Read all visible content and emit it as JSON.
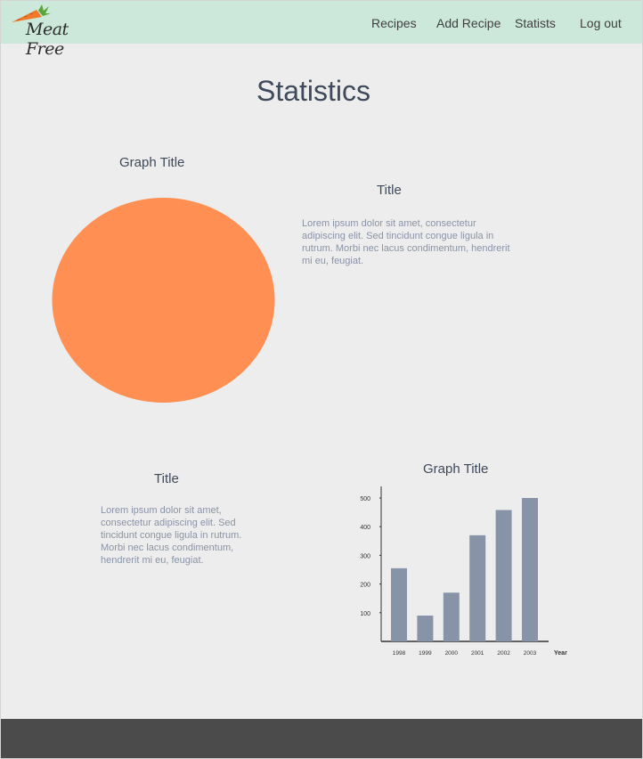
{
  "header": {
    "logo_text": "Meat Free",
    "nav": [
      "Recipes",
      "Add Recipe",
      "Statists",
      "Log out"
    ]
  },
  "page_title": "Statistics",
  "section1": {
    "graph_title": "Graph Title",
    "text_title": "Title",
    "text": "Lorem ipsum dolor sit amet, consectetur adipiscing elit. Sed tincidunt congue ligula in rutrum. Morbi nec lacus condimentum, hendrerit mi eu, feugiat."
  },
  "section2": {
    "text_title": "Title",
    "text": "Lorem ipsum dolor sit amet, consectetur adipiscing elit. Sed tincidunt congue ligula in rutrum. Morbi nec lacus condimentum, hendrerit mi eu, feugiat.",
    "graph_title": "Graph Title"
  },
  "colors": {
    "header_bg": "#cce8db",
    "pie_color": "#ff8f52",
    "bar_color": "#8794a8",
    "footer_bg": "#4b4b4b"
  },
  "chart_data": [
    {
      "type": "pie",
      "title": "Graph Title",
      "values": [
        100
      ],
      "colors": [
        "#ff8f52"
      ]
    },
    {
      "type": "bar",
      "title": "Graph Title",
      "categories": [
        "1998",
        "1999",
        "2000",
        "2001",
        "2002",
        "2003"
      ],
      "values": [
        255,
        90,
        170,
        370,
        458,
        500
      ],
      "xlabel": "Year",
      "ylabel": "",
      "yticks": [
        100,
        200,
        300,
        400,
        500
      ],
      "ylim": [
        0,
        500
      ],
      "color": "#8794a8"
    }
  ]
}
